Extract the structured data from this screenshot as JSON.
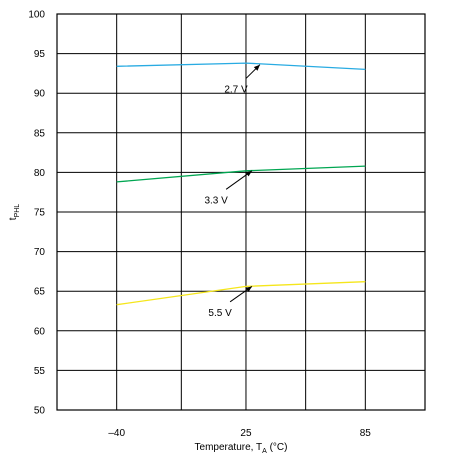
{
  "chart_data": {
    "type": "line",
    "title": "",
    "xlabel": "Temperature, T",
    "xlabel_sub": "A",
    "xlabel_unit": " (°C)",
    "ylabel": "t",
    "ylabel_sub": "PHL",
    "x_ticks": [
      -40,
      25,
      85
    ],
    "x_tick_labels": [
      "–40",
      "25",
      "85"
    ],
    "xlim": [
      -70,
      115
    ],
    "ylim": [
      50,
      100
    ],
    "y_ticks": [
      50,
      55,
      60,
      65,
      70,
      75,
      80,
      85,
      90,
      95,
      100
    ],
    "grid": true,
    "series": [
      {
        "name": "2.7 V",
        "color": "#29abe2",
        "x": [
          -40,
          25,
          85
        ],
        "y": [
          93.4,
          93.8,
          93.0
        ]
      },
      {
        "name": "3.3 V",
        "color": "#00a651",
        "x": [
          -40,
          25,
          85
        ],
        "y": [
          78.8,
          80.2,
          80.8
        ]
      },
      {
        "name": "5.5 V",
        "color": "#f5e61b",
        "x": [
          -40,
          25,
          85
        ],
        "y": [
          63.3,
          65.6,
          66.2
        ]
      }
    ],
    "annotations": [
      {
        "text": "2.7 V",
        "label_x": 20,
        "label_y": 90.6,
        "arrow_to_x": 32,
        "arrow_to_y": 93.6
      },
      {
        "text": "3.3 V",
        "label_x": 10,
        "label_y": 76.6,
        "arrow_to_x": 28,
        "arrow_to_y": 80.2
      },
      {
        "text": "5.5 V",
        "label_x": 12,
        "label_y": 62.4,
        "arrow_to_x": 28,
        "arrow_to_y": 65.6
      }
    ]
  }
}
